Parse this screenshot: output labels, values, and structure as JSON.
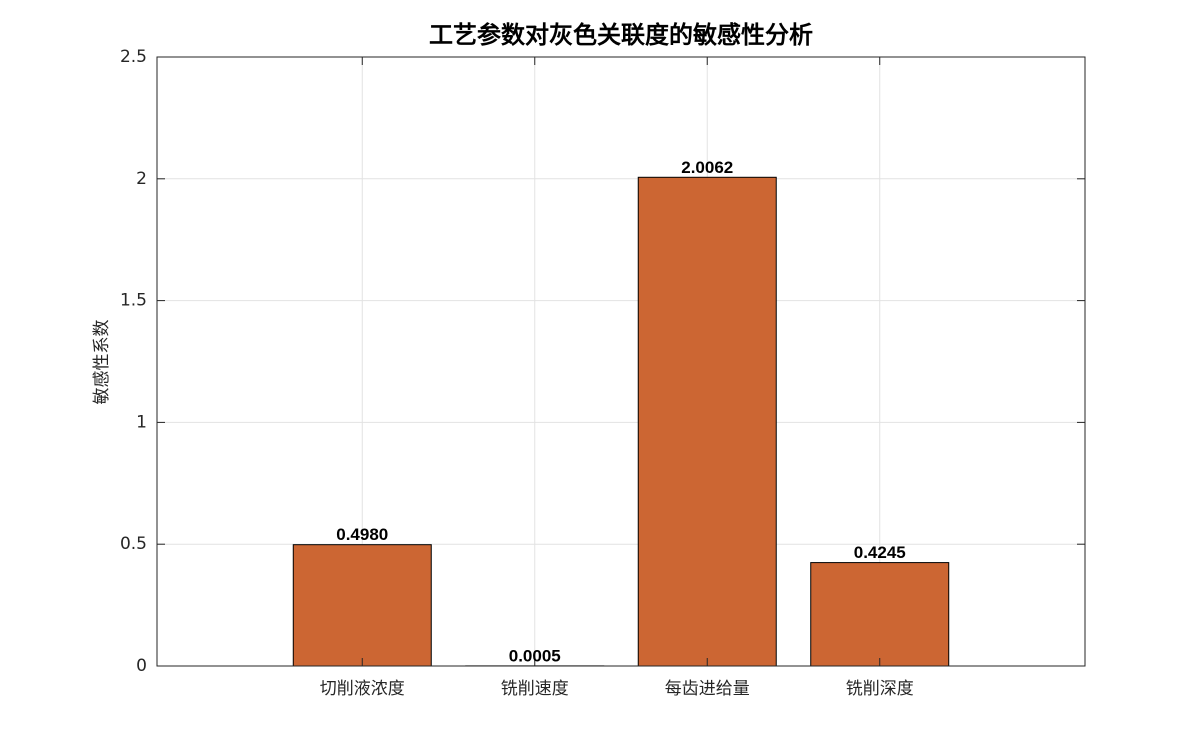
{
  "chart_data": {
    "type": "bar",
    "title": "工艺参数对灰色关联度的敏感性分析",
    "y_label": "敏感性系数",
    "categories": [
      "切削液浓度",
      "铣削速度",
      "每齿进给量",
      "铣削深度"
    ],
    "values": [
      0.498,
      0.0005,
      2.0062,
      0.4245
    ],
    "value_labels": [
      "0.4980",
      "0.0005",
      "2.0062",
      "0.4245"
    ],
    "color": "#cc6633",
    "ylim": [
      0,
      2.5
    ],
    "yticks": [
      0,
      0.5,
      1,
      1.5,
      2,
      2.5
    ],
    "grid": true
  }
}
